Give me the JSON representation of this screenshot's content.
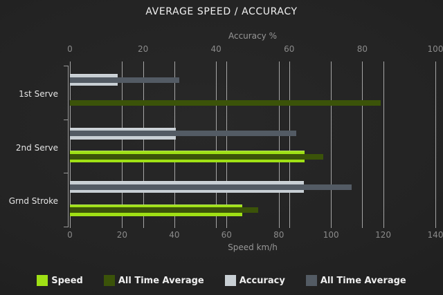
{
  "title": "AVERAGE SPEED / ACCURACY",
  "colors": {
    "background": "#222222",
    "gridline": "#cbcbcb",
    "axis_line": "#9a9a9a",
    "tick_text": "#8b8b8b",
    "axis_title_text": "#979797",
    "category_text": "#e4e4e4",
    "title_text": "#f2f2f2",
    "legend_text": "#eeeeee",
    "speed": "#9fe015",
    "speed_all_time_average": "#3b5309",
    "accuracy": "#c8cfd4",
    "accuracy_all_time_average": "#535b64"
  },
  "chart_data": {
    "type": "bar",
    "orientation": "horizontal",
    "title": "AVERAGE SPEED / ACCURACY",
    "categories": [
      "1st Serve",
      "2nd Serve",
      "Grnd Stroke"
    ],
    "axes": {
      "top": {
        "label": "Accuracy %",
        "min": 0,
        "max": 100,
        "ticks": [
          0,
          20,
          40,
          60,
          80,
          100
        ]
      },
      "bottom": {
        "label": "Speed km/h",
        "min": 0,
        "max": 140,
        "ticks": [
          0,
          20,
          40,
          60,
          80,
          100,
          120,
          140
        ]
      }
    },
    "series": [
      {
        "name": "Speed",
        "axis": "bottom",
        "color": "#9fe015",
        "role": "main-speed",
        "values": [
          0,
          90,
          66
        ]
      },
      {
        "name": "All Time Average",
        "axis": "bottom",
        "color": "#3b5309",
        "role": "avg-speed",
        "values": [
          119,
          97,
          72
        ]
      },
      {
        "name": "Accuracy",
        "axis": "top",
        "color": "#c8cfd4",
        "role": "main-accuracy",
        "values": [
          13,
          29,
          64
        ]
      },
      {
        "name": "All Time Average",
        "axis": "top",
        "color": "#535b64",
        "role": "avg-accuracy",
        "values": [
          30,
          62,
          77
        ]
      }
    ],
    "legend": [
      {
        "label": "Speed",
        "color": "#9fe015"
      },
      {
        "label": "All Time Average",
        "color": "#3b5309"
      },
      {
        "label": "Accuracy",
        "color": "#c8cfd4"
      },
      {
        "label": "All Time Average",
        "color": "#535b64"
      }
    ],
    "grid": true,
    "legend_position": "bottom"
  }
}
